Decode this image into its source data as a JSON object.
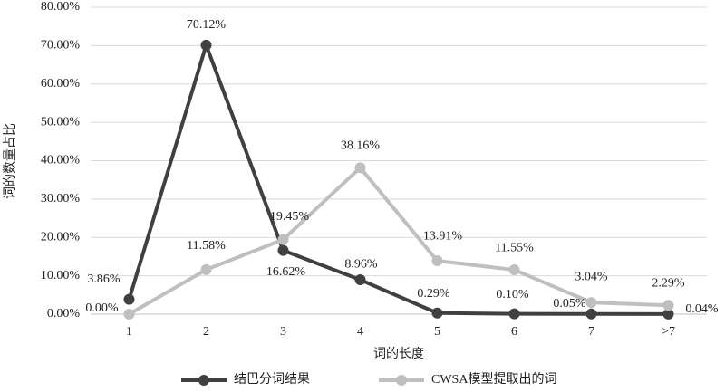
{
  "chart_data": {
    "type": "line",
    "x_label": "词的长度",
    "y_label": "词的数量占比",
    "categories": [
      "1",
      "2",
      "3",
      "4",
      "5",
      "6",
      "7",
      ">7"
    ],
    "series": [
      {
        "name": "结巴分词结果",
        "color": "#404040",
        "values": [
          3.86,
          70.12,
          16.62,
          8.96,
          0.29,
          0.1,
          0.05,
          0.04
        ],
        "value_labels": [
          "3.86%",
          "70.12%",
          "16.62%",
          "8.96%",
          "0.29%",
          "0.10%",
          "0.05%",
          "0.04%"
        ]
      },
      {
        "name": "CWSA模型提取出的词",
        "color": "#bfbfbf",
        "values": [
          0.0,
          11.58,
          19.45,
          38.16,
          13.91,
          11.55,
          3.04,
          2.29
        ],
        "value_labels": [
          "0.00%",
          "11.58%",
          "19.45%",
          "38.16%",
          "13.91%",
          "11.55%",
          "3.04%",
          "2.29%"
        ]
      }
    ],
    "ylim": [
      0,
      80
    ],
    "yticks": [
      {
        "value": 0,
        "label": "0.00%"
      },
      {
        "value": 10,
        "label": "10.00%"
      },
      {
        "value": 20,
        "label": "20.00%"
      },
      {
        "value": 30,
        "label": "30.00%"
      },
      {
        "value": 40,
        "label": "40.00%"
      },
      {
        "value": 50,
        "label": "50.00%"
      },
      {
        "value": 60,
        "label": "60.00%"
      },
      {
        "value": 70,
        "label": "70.00%"
      },
      {
        "value": 80,
        "label": "80.00%"
      }
    ],
    "grid": true,
    "legend": "bottom"
  }
}
